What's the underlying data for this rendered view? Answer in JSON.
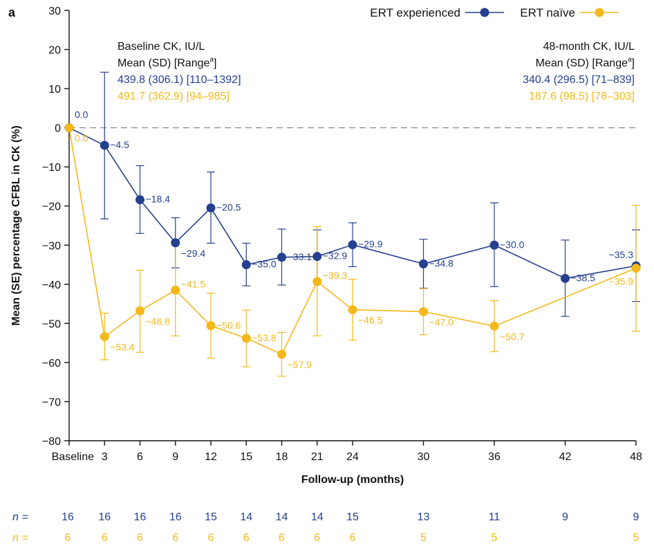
{
  "chart_data": {
    "type": "line",
    "panel_label": "a",
    "xlabel": "Follow-up (months)",
    "ylabel": "Mean (SE) percentage CFBL in CK (%)",
    "ylim": [
      -80,
      30
    ],
    "yticks": [
      30,
      20,
      10,
      0,
      -10,
      -20,
      -30,
      -40,
      -50,
      -60,
      -70,
      -80
    ],
    "ytick_labels": [
      "30",
      "20",
      "10",
      "0",
      "−10",
      "−20",
      "−30",
      "−40",
      "−50",
      "−60",
      "−70",
      "−80"
    ],
    "x": [
      0,
      3,
      6,
      9,
      12,
      15,
      18,
      21,
      24,
      30,
      36,
      42,
      48
    ],
    "xtick_labels": [
      "Baseline",
      "3",
      "6",
      "9",
      "12",
      "15",
      "18",
      "21",
      "24",
      "30",
      "36",
      "42",
      "48"
    ],
    "reference_line": 0,
    "legend_position": "top-right",
    "series": [
      {
        "name": "ERT experienced",
        "color": "#24408e",
        "x": [
          0,
          3,
          6,
          9,
          12,
          15,
          18,
          21,
          24,
          30,
          36,
          42,
          48
        ],
        "values": [
          0.0,
          -4.5,
          -18.4,
          -29.4,
          -20.5,
          -35.0,
          -33.1,
          -32.9,
          -29.9,
          -34.8,
          -30.0,
          -38.5,
          -35.3
        ],
        "labels": [
          "0.0",
          "−4.5",
          "−18.4",
          "−29.4",
          "−20.5",
          "−35.0",
          "−33.1",
          "−32.9",
          "−29.9",
          "−34.8",
          "−30.0",
          "−38.5",
          "−35.3"
        ],
        "error_low": [
          0,
          -23.3,
          -27.0,
          -35.8,
          -29.5,
          -40.4,
          -40.2,
          -39.6,
          -35.5,
          -41.0,
          -40.6,
          -48.2,
          -44.4
        ],
        "error_high": [
          0,
          14.2,
          -9.7,
          -23.0,
          -11.3,
          -29.5,
          -25.9,
          -26.1,
          -24.3,
          -28.5,
          -19.2,
          -28.7,
          -26.1
        ],
        "n": [
          "16",
          "16",
          "16",
          "16",
          "15",
          "14",
          "14",
          "14",
          "15",
          "13",
          "11",
          "9",
          "9"
        ]
      },
      {
        "name": "ERT naïve",
        "color": "#f5b819",
        "x": [
          0,
          3,
          6,
          9,
          12,
          15,
          18,
          21,
          24,
          30,
          36,
          48
        ],
        "values": [
          0.0,
          -53.4,
          -46.8,
          -41.5,
          -50.6,
          -53.8,
          -57.9,
          -39.3,
          -46.5,
          -47.0,
          -50.7,
          -35.9
        ],
        "labels": [
          "0.0",
          "−53.4",
          "−46.8",
          "−41.5",
          "−50.6",
          "−53.8",
          "−57.9",
          "−39.3",
          "−46.5",
          "−47.0",
          "−50.7",
          "−35.9"
        ],
        "error_low": [
          0,
          -59.3,
          -57.4,
          -53.2,
          -58.9,
          -61.1,
          -63.5,
          -53.2,
          -54.3,
          -52.9,
          -57.2,
          -52.0
        ],
        "error_high": [
          0,
          -47.4,
          -36.4,
          -29.6,
          -42.3,
          -46.6,
          -52.3,
          -25.3,
          -38.7,
          -41.1,
          -44.2,
          -19.8
        ],
        "n": [
          "6",
          "6",
          "6",
          "6",
          "6",
          "6",
          "6",
          "6",
          "6",
          "5",
          "5",
          "5"
        ]
      }
    ],
    "n_prefix": "n =",
    "annotations": {
      "baseline_title": "Baseline CK, IU/L",
      "baseline_subtitle": "Mean (SD) [Range",
      "baseline_exp": "439.8 (306.1) [110–1392]",
      "baseline_naive": "491.7 (362.9) [94–985]",
      "month48_title": "48-month CK, IU/L",
      "month48_subtitle": "Mean (SD) [Range",
      "month48_exp": "340.4 (296.5) [71–839]",
      "month48_naive": "187.6 (98.5) [78–303]",
      "superscript": "a",
      "close_bracket": "]"
    }
  }
}
